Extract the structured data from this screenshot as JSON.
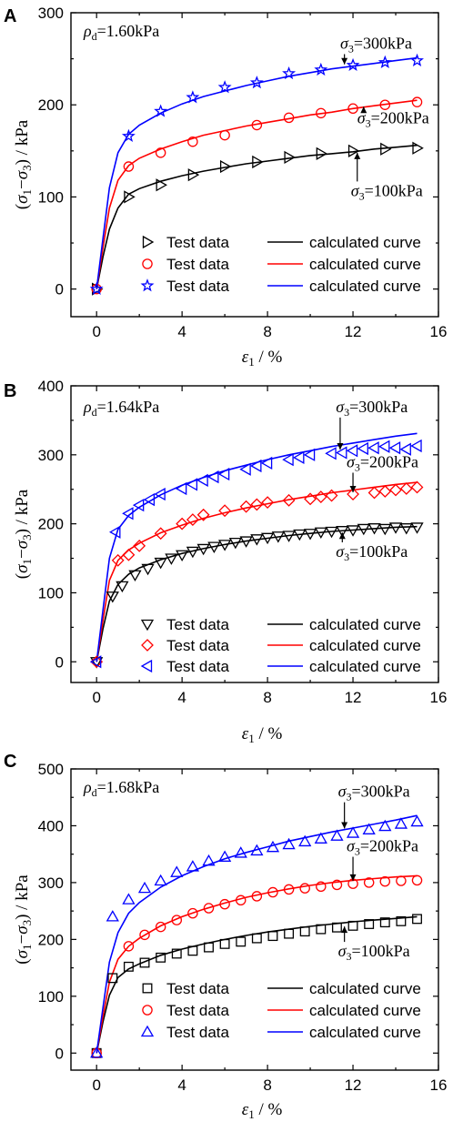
{
  "chart_data": [
    {
      "type": "scatter",
      "panel_label": "A",
      "density_label": "1.60kPa",
      "xlabel": "ε1 / %",
      "ylabel": "(σ1−σ3) / kPa",
      "xlim": [
        -1.2,
        16
      ],
      "ylim": [
        -30,
        300
      ],
      "xticks": [
        0,
        4,
        8,
        12,
        16
      ],
      "yticks": [
        0,
        100,
        200,
        300
      ],
      "series": [
        {
          "name": "Test data",
          "marker": "triangle-right",
          "color": "#000000",
          "x": [
            0,
            1.5,
            3,
            4.5,
            6,
            7.5,
            9,
            10.5,
            12,
            13.5,
            15
          ],
          "y": [
            0,
            100,
            113,
            124,
            133,
            138,
            143,
            147,
            150,
            152,
            153
          ]
        },
        {
          "name": "Test data",
          "marker": "circle",
          "color": "#ff0000",
          "x": [
            0,
            1.5,
            3,
            4.5,
            6,
            7.5,
            9,
            10.5,
            12,
            13.5,
            15
          ],
          "y": [
            0,
            133,
            148,
            160,
            167,
            178,
            186,
            191,
            196,
            200,
            203
          ]
        },
        {
          "name": "Test data",
          "marker": "star",
          "color": "#0000ff",
          "x": [
            0,
            1.5,
            3,
            4.5,
            6,
            7.5,
            9,
            10.5,
            12,
            13.5,
            15
          ],
          "y": [
            0,
            166,
            193,
            208,
            219,
            224,
            234,
            238,
            243,
            246,
            248
          ]
        }
      ],
      "curves": [
        {
          "name": "calculated curve",
          "color": "#000000",
          "x": [
            0,
            0.3,
            0.6,
            1,
            1.5,
            2,
            3,
            4,
            5,
            6,
            7,
            8,
            9,
            10,
            11,
            12,
            13,
            14,
            15
          ],
          "y": [
            0,
            35,
            65,
            88,
            103,
            109,
            117,
            123,
            128,
            132,
            136,
            139,
            142,
            145,
            147,
            149,
            152,
            154,
            156
          ]
        },
        {
          "name": "calculated curve",
          "color": "#ff0000",
          "x": [
            0,
            0.3,
            0.6,
            1,
            1.5,
            2,
            3,
            4,
            5,
            6,
            7,
            8,
            9,
            10,
            11,
            12,
            13,
            14,
            15
          ],
          "y": [
            0,
            45,
            88,
            118,
            134,
            142,
            152,
            160,
            167,
            172,
            177,
            181,
            185,
            189,
            192,
            196,
            199,
            202,
            205
          ]
        },
        {
          "name": "calculated curve",
          "color": "#0000ff",
          "x": [
            0,
            0.3,
            0.6,
            1,
            1.5,
            2,
            3,
            4,
            5,
            6,
            7,
            8,
            9,
            10,
            11,
            12,
            13,
            14,
            15
          ],
          "y": [
            0,
            55,
            110,
            148,
            168,
            178,
            191,
            201,
            209,
            215,
            221,
            226,
            231,
            235,
            239,
            242,
            245,
            248,
            251
          ]
        }
      ],
      "annotations": [
        {
          "text": "=300kPa",
          "x": 11.4,
          "y": 261,
          "arrow_x": 11.6,
          "arrow_to_y": 242,
          "dir": "down"
        },
        {
          "text": "=200kPa",
          "x": 12.2,
          "y": 180,
          "arrow_x": 12.5,
          "arrow_to_y": 200,
          "dir": "up"
        },
        {
          "text": "=100kPa",
          "x": 11.9,
          "y": 101,
          "arrow_x": 12.2,
          "arrow_to_y": 150,
          "dir": "up"
        }
      ]
    },
    {
      "type": "scatter",
      "panel_label": "B",
      "density_label": "1.64kPa",
      "xlabel": "ε1 / %",
      "ylabel": "(σ1−σ3) / kPa",
      "xlim": [
        -1.2,
        16
      ],
      "ylim": [
        -30,
        400
      ],
      "xticks": [
        0,
        4,
        8,
        12,
        16
      ],
      "yticks": [
        0,
        100,
        200,
        300,
        400
      ],
      "series": [
        {
          "name": "Test data",
          "marker": "triangle-down",
          "color": "#000000",
          "x": [
            0,
            0.75,
            1.2,
            1.8,
            2.4,
            3,
            3.5,
            4,
            4.5,
            5,
            5.5,
            6,
            6.5,
            7,
            7.5,
            8,
            8.5,
            9,
            9.5,
            10,
            10.5,
            11,
            11.5,
            12,
            12.5,
            13,
            13.5,
            14,
            14.5,
            15
          ],
          "y": [
            0,
            95,
            110,
            126,
            135,
            144,
            150,
            155,
            160,
            164,
            167,
            170,
            173,
            175,
            178,
            180,
            182,
            183,
            185,
            186,
            188,
            189,
            190,
            191,
            193,
            194,
            193,
            195,
            194,
            195
          ]
        },
        {
          "name": "Test data",
          "marker": "diamond",
          "color": "#ff0000",
          "x": [
            0,
            1,
            1.5,
            2,
            3,
            4,
            4.5,
            5,
            6,
            7,
            7.5,
            8,
            9,
            10,
            10.5,
            11,
            12,
            13,
            13.5,
            14,
            14.5,
            15
          ],
          "y": [
            0,
            147,
            155,
            168,
            186,
            200,
            206,
            213,
            219,
            225,
            228,
            231,
            234,
            236,
            239,
            241,
            243,
            245,
            247,
            249,
            251,
            253
          ]
        },
        {
          "name": "Test data",
          "marker": "triangle-left",
          "color": "#0000ff",
          "x": [
            0,
            0.9,
            1.5,
            2,
            2.5,
            3,
            4,
            4.5,
            5,
            5.5,
            6,
            7,
            7.5,
            8,
            9,
            9.5,
            10,
            11,
            11.5,
            12,
            12.5,
            13,
            13.5,
            14,
            14.5,
            15
          ],
          "y": [
            0,
            188,
            215,
            227,
            235,
            243,
            251,
            257,
            263,
            268,
            272,
            279,
            284,
            288,
            293,
            296,
            300,
            302,
            303,
            306,
            309,
            310,
            312,
            310,
            308,
            313
          ]
        }
      ],
      "curves": [
        {
          "name": "calculated curve",
          "color": "#000000",
          "x": [
            0,
            0.3,
            0.6,
            1,
            1.5,
            2,
            3,
            4,
            5,
            6,
            7,
            8,
            9,
            10,
            11,
            12,
            13,
            14,
            15
          ],
          "y": [
            0,
            48,
            88,
            112,
            127,
            136,
            148,
            157,
            164,
            170,
            175,
            179,
            183,
            186,
            189,
            191,
            193,
            195,
            196
          ]
        },
        {
          "name": "calculated curve",
          "color": "#ff0000",
          "x": [
            0,
            0.3,
            0.6,
            1,
            1.5,
            2,
            3,
            4,
            5,
            6,
            7,
            8,
            9,
            10,
            11,
            12,
            13,
            14,
            15
          ],
          "y": [
            0,
            60,
            118,
            147,
            162,
            172,
            187,
            198,
            208,
            216,
            223,
            229,
            235,
            240,
            245,
            249,
            253,
            257,
            260
          ]
        },
        {
          "name": "calculated curve",
          "color": "#0000ff",
          "x": [
            0,
            0.3,
            0.6,
            1,
            1.5,
            2,
            3,
            4,
            5,
            6,
            7,
            8,
            9,
            10,
            11,
            12,
            13,
            14,
            15
          ],
          "y": [
            0,
            75,
            150,
            192,
            212,
            224,
            242,
            256,
            267,
            277,
            285,
            293,
            300,
            306,
            312,
            317,
            322,
            327,
            331
          ]
        }
      ],
      "annotations": [
        {
          "text": "=300kPa",
          "x": 11.2,
          "y": 362,
          "arrow_x": 11.4,
          "arrow_to_y": 305,
          "dir": "down"
        },
        {
          "text": "=200kPa",
          "x": 11.7,
          "y": 282,
          "arrow_x": 12,
          "arrow_to_y": 243,
          "dir": "down"
        },
        {
          "text": "=100kPa",
          "x": 11.2,
          "y": 152,
          "arrow_x": 11.5,
          "arrow_to_y": 190,
          "dir": "up"
        }
      ]
    },
    {
      "type": "scatter",
      "panel_label": "C",
      "density_label": "1.68kPa",
      "xlabel": "ε1 / %",
      "ylabel": "(σ1−σ3) / kPa",
      "xlim": [
        -1.2,
        16
      ],
      "ylim": [
        -30,
        500
      ],
      "xticks": [
        0,
        4,
        8,
        12,
        16
      ],
      "yticks": [
        0,
        100,
        200,
        300,
        400,
        500
      ],
      "series": [
        {
          "name": "Test data",
          "marker": "square",
          "color": "#000000",
          "x": [
            0,
            0.75,
            1.5,
            2.25,
            3,
            3.75,
            4.5,
            5.25,
            6,
            6.75,
            7.5,
            8.25,
            9,
            9.75,
            10.5,
            11.25,
            12,
            12.75,
            13.5,
            14.25,
            15
          ],
          "y": [
            0,
            132,
            152,
            159,
            168,
            175,
            180,
            186,
            192,
            196,
            202,
            206,
            210,
            214,
            218,
            221,
            224,
            227,
            230,
            232,
            236
          ]
        },
        {
          "name": "Test data",
          "marker": "circle",
          "color": "#ff0000",
          "x": [
            0,
            1.5,
            2.25,
            3,
            3.75,
            4.5,
            5.25,
            6,
            6.75,
            7.5,
            8.25,
            9,
            9.75,
            10.5,
            11.25,
            12,
            12.75,
            13.5,
            14.25,
            15
          ],
          "y": [
            0,
            188,
            208,
            222,
            234,
            246,
            255,
            262,
            269,
            276,
            283,
            288,
            290,
            293,
            296,
            298,
            300,
            302,
            303,
            304
          ]
        },
        {
          "name": "Test data",
          "marker": "triangle-up",
          "color": "#0000ff",
          "x": [
            0,
            0.75,
            1.5,
            2.25,
            3,
            3.75,
            4.5,
            5.25,
            6,
            6.75,
            7.5,
            8.25,
            9,
            9.75,
            10.5,
            11.25,
            12,
            12.75,
            13.5,
            14.25,
            15
          ],
          "y": [
            0,
            240,
            270,
            290,
            303,
            318,
            328,
            338,
            345,
            352,
            356,
            362,
            367,
            372,
            377,
            382,
            387,
            393,
            399,
            403,
            407
          ]
        }
      ],
      "curves": [
        {
          "name": "calculated curve",
          "color": "#000000",
          "x": [
            0,
            0.3,
            0.6,
            1,
            1.5,
            2,
            3,
            4,
            5,
            6,
            7,
            8,
            9,
            10,
            11,
            12,
            13,
            14,
            15
          ],
          "y": [
            0,
            55,
            102,
            133,
            148,
            157,
            172,
            183,
            192,
            200,
            207,
            213,
            218,
            223,
            227,
            231,
            234,
            237,
            240
          ]
        },
        {
          "name": "calculated curve",
          "color": "#ff0000",
          "x": [
            0,
            0.3,
            0.6,
            1,
            1.5,
            2,
            3,
            4,
            5,
            6,
            7,
            8,
            9,
            10,
            11,
            12,
            13,
            14,
            15
          ],
          "y": [
            0,
            65,
            125,
            165,
            188,
            202,
            224,
            240,
            253,
            264,
            274,
            282,
            289,
            295,
            300,
            304,
            307,
            310,
            312
          ]
        },
        {
          "name": "calculated curve",
          "color": "#0000ff",
          "x": [
            0,
            0.3,
            0.6,
            1,
            1.5,
            2,
            3,
            4,
            5,
            6,
            7,
            8,
            9,
            10,
            11,
            12,
            13,
            14,
            15
          ],
          "y": [
            0,
            80,
            160,
            212,
            246,
            265,
            292,
            312,
            328,
            342,
            353,
            363,
            373,
            381,
            389,
            396,
            403,
            410,
            418
          ]
        }
      ],
      "annotations": [
        {
          "text": "=300kPa",
          "x": 11.3,
          "y": 451,
          "arrow_x": 11.6,
          "arrow_to_y": 392,
          "dir": "down"
        },
        {
          "text": "=200kPa",
          "x": 11.7,
          "y": 355,
          "arrow_x": 12,
          "arrow_to_y": 300,
          "dir": "down"
        },
        {
          "text": "=100kPa",
          "x": 11.3,
          "y": 170,
          "arrow_x": 11.6,
          "arrow_to_y": 226,
          "dir": "up"
        }
      ]
    }
  ]
}
